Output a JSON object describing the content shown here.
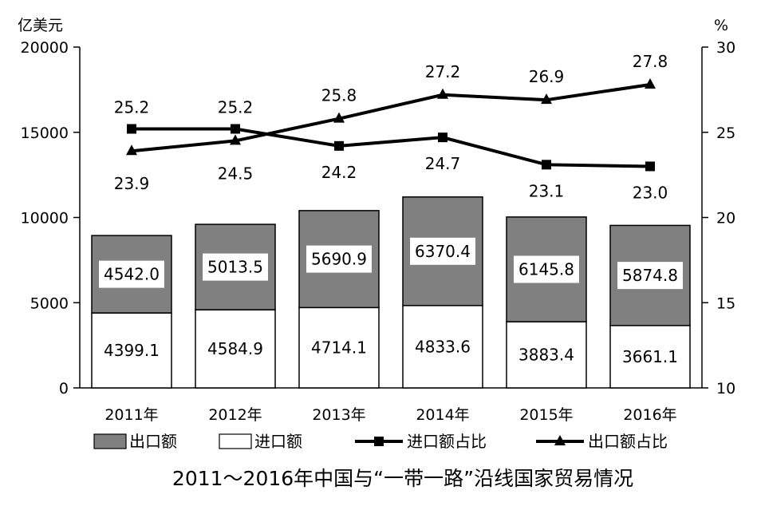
{
  "chart_data": {
    "type": "bar",
    "title": "2011～2016年中国与“一带一路”沿线国家贸易情况",
    "y_left_unit": "亿美元",
    "y_right_unit": "%",
    "ylim_left": [
      0,
      20000
    ],
    "ylim_right": [
      10,
      30
    ],
    "yticks_left": [
      "0",
      "5000",
      "10000",
      "15000",
      "20000"
    ],
    "yticks_right": [
      "10",
      "15",
      "20",
      "25",
      "30"
    ],
    "categories": [
      "2011年",
      "2012年",
      "2013年",
      "2014年",
      "2015年",
      "2016年"
    ],
    "series": [
      {
        "name": "出口额",
        "chart": "stacked-bar",
        "axis": "left",
        "values": [
          4542.0,
          5013.5,
          5690.9,
          6370.4,
          6145.8,
          5874.8
        ],
        "labels": [
          "4542.0",
          "5013.5",
          "5690.9",
          "6370.4",
          "6145.8",
          "5874.8"
        ],
        "color": "#808080"
      },
      {
        "name": "进口额",
        "chart": "stacked-bar",
        "axis": "left",
        "values": [
          4399.1,
          4584.9,
          4714.1,
          4833.6,
          3883.4,
          3661.1
        ],
        "labels": [
          "4399.1",
          "4584.9",
          "4714.1",
          "4833.6",
          "3883.4",
          "3661.1"
        ],
        "color": "#ffffff"
      },
      {
        "name": "进口额占比",
        "chart": "line",
        "axis": "right",
        "marker": "square",
        "values": [
          25.2,
          25.2,
          24.2,
          24.7,
          23.1,
          23.0
        ],
        "labels": [
          "25.2",
          "25.2",
          "24.2",
          "24.7",
          "23.1",
          "23.0"
        ],
        "color": "#000000"
      },
      {
        "name": "出口额占比",
        "chart": "line",
        "axis": "right",
        "marker": "triangle",
        "values": [
          23.9,
          24.5,
          25.8,
          27.2,
          26.9,
          27.8
        ],
        "labels": [
          "23.9",
          "24.5",
          "25.8",
          "27.2",
          "26.9",
          "27.8"
        ],
        "color": "#000000"
      }
    ],
    "legend_position": "bottom",
    "grid": false
  }
}
